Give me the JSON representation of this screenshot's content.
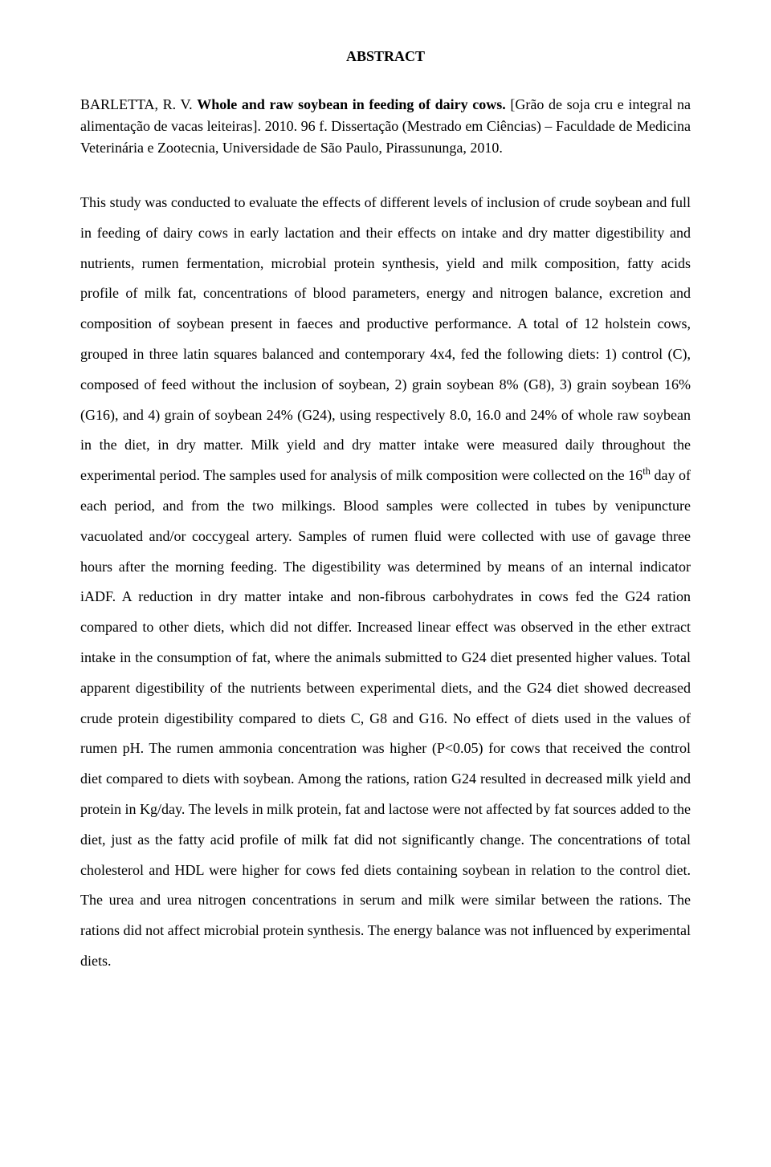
{
  "title": "ABSTRACT",
  "heading": {
    "author": "BARLETTA, R. V. ",
    "title_en": "Whole and raw soybean in feeding of dairy cows. ",
    "title_pt": "[Grão de soja cru e integral na alimentação de vacas leiteiras]. 2010. 96 f. Dissertação (Mestrado em Ciências) – Faculdade de Medicina Veterinária e Zootecnia, Universidade de São Paulo, Pirassununga, 2010."
  },
  "body": {
    "p1a": "This study was conducted to evaluate the effects of different levels of inclusion of crude soybean and full in feeding of dairy cows in early lactation and their effects on intake and dry matter digestibility and nutrients, rumen fermentation, microbial protein synthesis, yield and milk composition, fatty acids profile of milk fat, concentrations of blood parameters, energy and nitrogen balance, excretion and composition of soybean present in faeces and productive performance. A total of 12 holstein cows, grouped in three latin squares balanced and contemporary 4x4, fed the following diets: 1) control (C), composed of feed without the inclusion of soybean, 2) grain soybean 8% (G8), 3) grain soybean 16% (G16), and 4) grain of soybean 24% (G24), using respectively 8.0, 16.0 and 24% of whole raw soybean in the diet, in dry matter. Milk yield and dry matter intake were measured daily throughout the experimental period. The samples used for analysis of milk composition were collected on the 16",
    "p1sup": "th",
    "p1b": " day of each period, and from the two milkings. Blood samples were collected in tubes by venipuncture vacuolated and/or coccygeal artery. Samples of rumen fluid were collected with use of gavage three hours after the morning feeding. The digestibility was determined by means of an internal indicator iADF. A reduction in dry matter intake and non-fibrous carbohydrates in cows fed the G24 ration compared to other diets, which did not differ. Increased linear effect was observed in the ether extract intake in the consumption of fat, where the animals submitted to G24 diet presented higher values. Total apparent digestibility of the nutrients between experimental diets, and the G24 diet showed decreased crude protein digestibility compared to diets C, G8 and G16. No effect of diets used in the values of rumen pH. The rumen ammonia concentration was higher (P<0.05) for cows that received the control diet compared to diets with soybean. Among the rations, ration G24 resulted in decreased milk yield and protein in Kg/day. The levels in milk protein, fat and lactose were not affected by fat sources added to the diet, just as the fatty acid profile of milk fat did not significantly change. The concentrations of total cholesterol and HDL were higher for cows fed diets containing soybean in relation to the control diet. The urea and urea nitrogen concentrations in serum and milk were similar between the rations. The rations did not affect microbial protein synthesis. The energy balance was not influenced by experimental diets."
  }
}
